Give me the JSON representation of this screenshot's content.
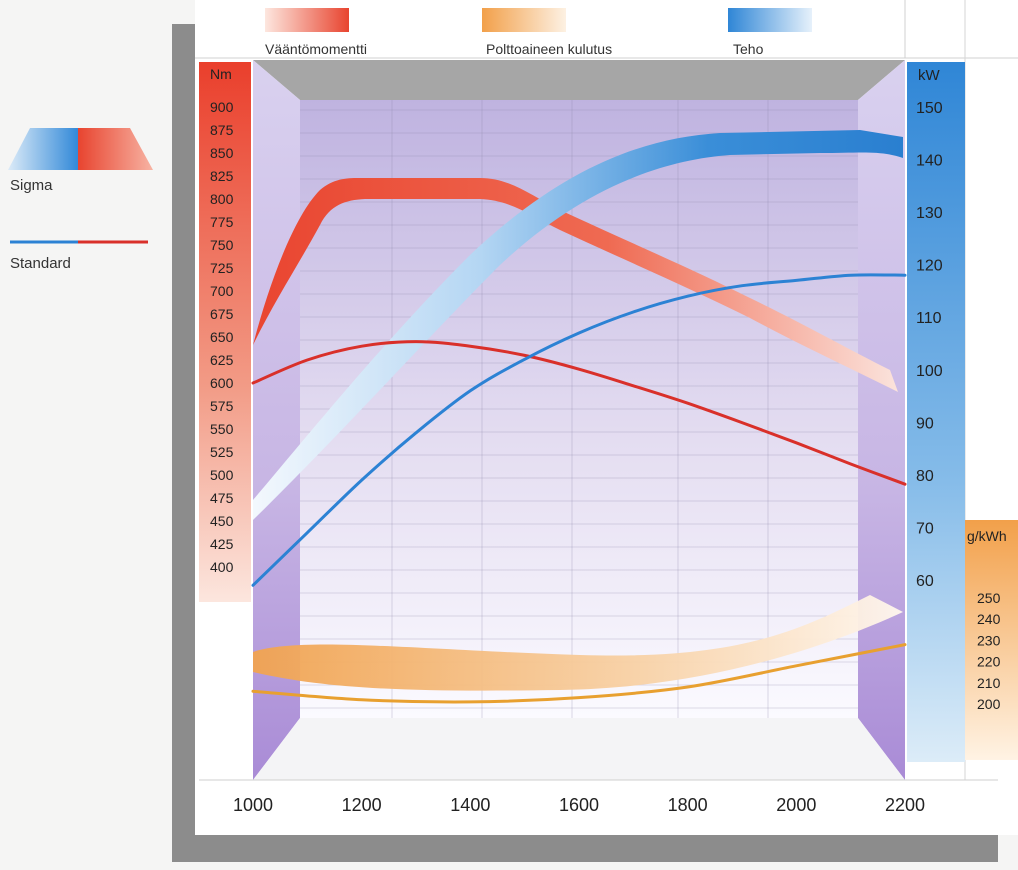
{
  "legend": {
    "items": [
      {
        "label": "Vääntömomentti",
        "color": "#e2473a"
      },
      {
        "label": "Polttoaineen kulutus",
        "color": "#f0a860"
      },
      {
        "label": "Teho",
        "color": "#3d8fd6"
      }
    ],
    "sigma_label": "Sigma",
    "standard_label": "Standard"
  },
  "chart_data": {
    "type": "line",
    "x_label": "",
    "x_ticks": [
      1000,
      1200,
      1400,
      1600,
      1800,
      2000,
      2200
    ],
    "xlim": [
      1000,
      2200
    ],
    "axes": {
      "torque": {
        "unit": "Nm",
        "ticks": [
          900,
          875,
          850,
          825,
          800,
          775,
          750,
          725,
          700,
          675,
          650,
          625,
          600,
          575,
          550,
          525,
          500,
          475,
          450,
          425,
          400
        ],
        "color": "#e2473a"
      },
      "power": {
        "unit": "kW",
        "ticks": [
          150,
          140,
          130,
          120,
          110,
          100,
          90,
          80,
          70,
          60
        ],
        "color": "#2f86d6"
      },
      "fuel": {
        "unit": "g/kWh",
        "ticks": [
          250,
          240,
          230,
          220,
          210,
          200
        ],
        "color": "#f0a040"
      }
    },
    "series": [
      {
        "name": "Sigma",
        "quantity": "Vääntömomentti",
        "unit": "Nm",
        "color": "#e2473a",
        "x": [
          1000,
          1050,
          1100,
          1150,
          1200,
          1300,
          1400,
          1450,
          1500,
          1600,
          1700,
          1800,
          1900,
          2000,
          2100,
          2200
        ],
        "values": [
          655,
          740,
          790,
          808,
          810,
          810,
          808,
          795,
          780,
          745,
          710,
          675,
          640,
          605,
          575,
          545
        ]
      },
      {
        "name": "Standard",
        "quantity": "Vääntömomentti",
        "unit": "Nm",
        "color": "#d9302a",
        "x": [
          1000,
          1100,
          1200,
          1300,
          1400,
          1500,
          1600,
          1700,
          1800,
          1900,
          2000,
          2100,
          2200
        ],
        "values": [
          600,
          625,
          640,
          645,
          640,
          630,
          615,
          597,
          578,
          557,
          535,
          512,
          490
        ]
      },
      {
        "name": "Sigma",
        "quantity": "Teho",
        "unit": "kW",
        "color": "#3d8fd6",
        "x": [
          1000,
          1100,
          1200,
          1300,
          1400,
          1500,
          1600,
          1700,
          1800,
          1900,
          2000,
          2100,
          2200
        ],
        "values": [
          70,
          82,
          94,
          106,
          117,
          126,
          133,
          138,
          141,
          142,
          142,
          142,
          141
        ]
      },
      {
        "name": "Standard",
        "quantity": "Teho",
        "unit": "kW",
        "color": "#2c82d4",
        "x": [
          1000,
          1100,
          1200,
          1300,
          1400,
          1500,
          1600,
          1700,
          1800,
          1900,
          2000,
          2100,
          2200
        ],
        "values": [
          59,
          69,
          79,
          88,
          96,
          102,
          107,
          111,
          114,
          116,
          117,
          118,
          118
        ]
      },
      {
        "name": "Sigma",
        "quantity": "Polttoaineen kulutus",
        "unit": "g/kWh",
        "color": "#f0a860",
        "x": [
          1000,
          1200,
          1400,
          1600,
          1800,
          2000,
          2200
        ],
        "values": [
          219,
          212,
          210,
          211,
          214,
          222,
          234
        ]
      },
      {
        "name": "Standard",
        "quantity": "Polttoaineen kulutus",
        "unit": "g/kWh",
        "color": "#e8a030",
        "x": [
          1000,
          1200,
          1400,
          1600,
          1800,
          2000,
          2200
        ],
        "values": [
          206,
          202,
          201,
          203,
          208,
          218,
          228
        ]
      }
    ]
  }
}
